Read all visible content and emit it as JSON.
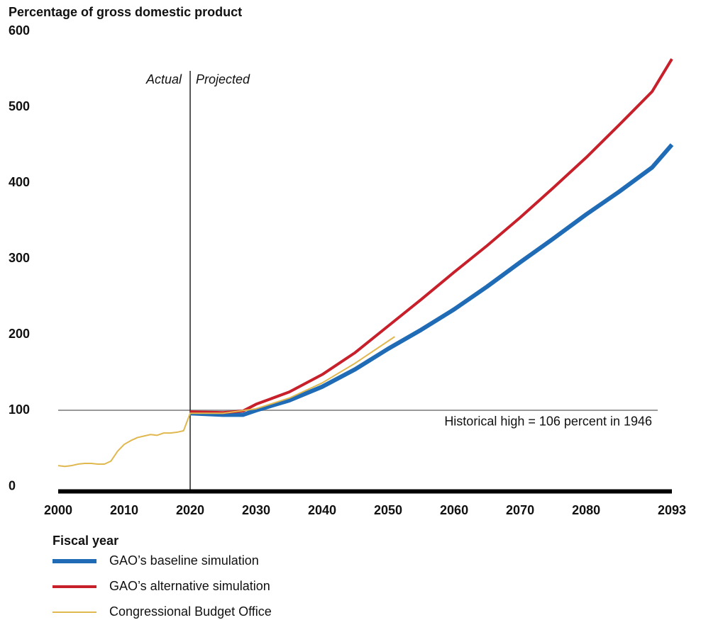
{
  "chart_data": {
    "type": "line",
    "y_label": "Percentage of gross domestic product",
    "x_label": "Fiscal year",
    "xlim": [
      2000,
      2093
    ],
    "xticks": [
      2000,
      2010,
      2020,
      2030,
      2040,
      2050,
      2060,
      2070,
      2080,
      2093
    ],
    "ylim": [
      0,
      600
    ],
    "yticks": [
      0,
      100,
      200,
      300,
      400,
      500,
      600
    ],
    "divider": {
      "x": 2020,
      "left_label": "Actual",
      "right_label": "Projected"
    },
    "reference_line": {
      "value": 106,
      "label": "Historical high = 106 percent in 1946"
    },
    "series": [
      {
        "name": "GAO’s baseline simulation",
        "color": "#1f6bb5",
        "width": 6,
        "x": [
          2020,
          2025,
          2028,
          2030,
          2035,
          2040,
          2045,
          2050,
          2055,
          2060,
          2065,
          2070,
          2075,
          2080,
          2085,
          2090,
          2093
        ],
        "values": [
          102,
          100,
          100,
          106,
          119,
          137,
          160,
          187,
          212,
          239,
          269,
          301,
          332,
          364,
          394,
          426,
          456
        ]
      },
      {
        "name": "GAO’s alternative simulation",
        "color": "#c8202a",
        "width": 4,
        "x": [
          2020,
          2025,
          2028,
          2030,
          2035,
          2040,
          2045,
          2050,
          2055,
          2060,
          2065,
          2070,
          2075,
          2080,
          2085,
          2090,
          2093
        ],
        "values": [
          104,
          103,
          105,
          114,
          130,
          153,
          182,
          217,
          252,
          288,
          323,
          360,
          399,
          439,
          482,
          526,
          569
        ]
      },
      {
        "name": "Congressional Budget Office",
        "color": "#e0b84f",
        "width": 2,
        "x": [
          2000,
          2001,
          2002,
          2003,
          2004,
          2005,
          2006,
          2007,
          2008,
          2009,
          2010,
          2011,
          2012,
          2013,
          2014,
          2015,
          2016,
          2017,
          2018,
          2019,
          2020,
          2025,
          2030,
          2035,
          2040,
          2045,
          2051
        ],
        "values": [
          33,
          32,
          33,
          35,
          36,
          36,
          35,
          35,
          39,
          52,
          61,
          66,
          70,
          72,
          74,
          73,
          76,
          76,
          77,
          79,
          102,
          102,
          108,
          122,
          142,
          168,
          203
        ]
      }
    ]
  }
}
